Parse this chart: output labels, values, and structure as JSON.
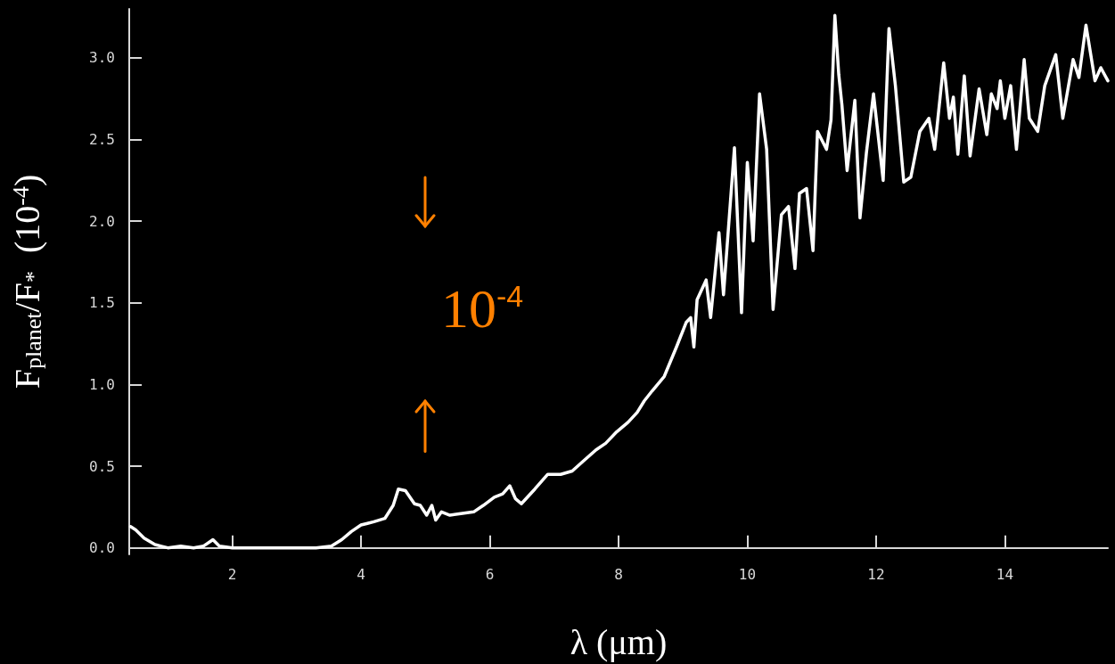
{
  "chart_data": {
    "type": "line",
    "xlabel": "λ (μm)",
    "ylabel": "F$_{planet}$/F$_{*}$  (10$^{-4}$)",
    "annotations": [
      "10$^{-4}$"
    ],
    "x": [
      0.42,
      0.5,
      0.63,
      0.8,
      0.9,
      1.0,
      1.2,
      1.4,
      1.55,
      1.7,
      1.8,
      2.0,
      2.5,
      3.0,
      3.3,
      3.54,
      3.7,
      3.85,
      4.0,
      4.1,
      4.2,
      4.37,
      4.5,
      4.58,
      4.69,
      4.83,
      4.92,
      5.02,
      5.1,
      5.16,
      5.25,
      5.38,
      5.55,
      5.75,
      5.9,
      6.07,
      6.2,
      6.31,
      6.4,
      6.49,
      6.7,
      6.9,
      7.1,
      7.28,
      7.45,
      7.65,
      7.8,
      7.97,
      8.15,
      8.29,
      8.4,
      8.52,
      8.71,
      8.9,
      9.05,
      9.12,
      9.17,
      9.22,
      9.36,
      9.43,
      9.56,
      9.63,
      9.8,
      9.91,
      10.0,
      10.09,
      10.19,
      10.3,
      10.4,
      10.53,
      10.64,
      10.74,
      10.81,
      10.92,
      11.02,
      11.09,
      11.23,
      11.3,
      11.36,
      11.42,
      11.47,
      11.55,
      11.67,
      11.75,
      11.85,
      11.96,
      12.11,
      12.2,
      12.3,
      12.43,
      12.54,
      12.68,
      12.82,
      12.91,
      13.05,
      13.14,
      13.2,
      13.27,
      13.37,
      13.46,
      13.6,
      13.72,
      13.79,
      13.88,
      13.93,
      14.0,
      14.09,
      14.18,
      14.3,
      14.38,
      14.51,
      14.62,
      14.79,
      14.9,
      15.06,
      15.15,
      15.26,
      15.4,
      15.49,
      15.6
    ],
    "series": [
      {
        "color": "#ffffff",
        "values": [
          0.13,
          0.11,
          0.06,
          0.02,
          0.01,
          0.0,
          0.01,
          0.0,
          0.01,
          0.05,
          0.01,
          0.0,
          0.0,
          0.0,
          0.0,
          0.01,
          0.05,
          0.1,
          0.14,
          0.15,
          0.16,
          0.18,
          0.26,
          0.36,
          0.35,
          0.27,
          0.26,
          0.2,
          0.26,
          0.17,
          0.22,
          0.2,
          0.21,
          0.22,
          0.26,
          0.31,
          0.33,
          0.38,
          0.3,
          0.27,
          0.36,
          0.45,
          0.45,
          0.47,
          0.53,
          0.6,
          0.64,
          0.71,
          0.77,
          0.83,
          0.9,
          0.96,
          1.05,
          1.23,
          1.38,
          1.41,
          1.23,
          1.52,
          1.64,
          1.41,
          1.93,
          1.55,
          2.45,
          1.44,
          2.36,
          1.88,
          2.78,
          2.44,
          1.46,
          2.04,
          2.09,
          1.71,
          2.17,
          2.2,
          1.82,
          2.55,
          2.44,
          2.62,
          3.26,
          2.9,
          2.71,
          2.31,
          2.74,
          2.02,
          2.42,
          2.78,
          2.25,
          3.18,
          2.83,
          2.24,
          2.27,
          2.55,
          2.63,
          2.44,
          2.97,
          2.63,
          2.76,
          2.41,
          2.89,
          2.4,
          2.81,
          2.53,
          2.78,
          2.69,
          2.86,
          2.63,
          2.83,
          2.44,
          2.99,
          2.63,
          2.55,
          2.83,
          3.02,
          2.63,
          2.99,
          2.88,
          3.2,
          2.86,
          2.94,
          2.86
        ]
      }
    ],
    "xlim": [
      0.4,
      15.6
    ],
    "ylim": [
      -0.04,
      3.3
    ],
    "xticks": [
      2,
      4,
      6,
      8,
      10,
      12,
      14
    ],
    "yticks": [
      {
        "value": 0,
        "label": "0.0"
      },
      {
        "value": 0.5,
        "label": "0.5"
      },
      {
        "value": 1,
        "label": "1.0"
      },
      {
        "value": 1.5,
        "label": "1.5"
      },
      {
        "value": 2,
        "label": "2.0"
      },
      {
        "value": 2.5,
        "label": "2.5"
      },
      {
        "value": 3,
        "label": "3.0"
      }
    ],
    "grid": false,
    "marker": "none",
    "line_style": "solid"
  }
}
